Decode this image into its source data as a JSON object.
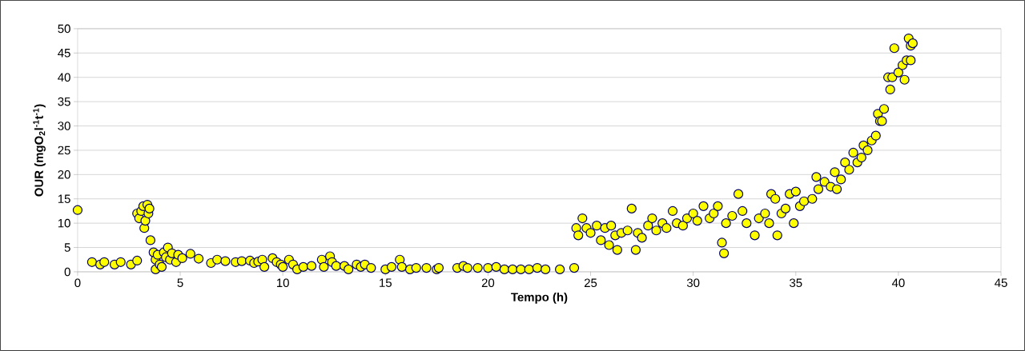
{
  "chart_data": {
    "type": "scatter",
    "xlabel": "Tempo (h)",
    "ylabel": "**OUR (mgO$_{2}$l$^{-1}$t$^{-1}$)**",
    "xlim": [
      0,
      45
    ],
    "xticks": [
      0,
      5,
      10,
      15,
      20,
      25,
      30,
      35,
      40,
      45
    ],
    "ylim": [
      0,
      50
    ],
    "yticks": [
      0,
      5,
      10,
      15,
      20,
      25,
      30,
      35,
      40,
      45,
      50
    ],
    "grid": "y",
    "series": [
      {
        "color": "#ffff00",
        "x": [
          0,
          0.7,
          1.1,
          1.3,
          1.8,
          2.1,
          2.6,
          2.9,
          2.9,
          3.0,
          3.1,
          3.2,
          3.25,
          3.3,
          3.4,
          3.45,
          3.5,
          3.55,
          3.7,
          3.8,
          3.8,
          3.9,
          4.0,
          4.1,
          4.2,
          4.3,
          4.4,
          4.5,
          4.6,
          4.8,
          4.9,
          5.1,
          5.5,
          5.9,
          6.5,
          6.8,
          7.2,
          7.7,
          8.0,
          8.4,
          8.6,
          8.8,
          9.0,
          9.1,
          9.5,
          9.7,
          9.9,
          10.0,
          10.3,
          10.5,
          10.7,
          11.0,
          11.4,
          11.9,
          12.0,
          12.3,
          12.4,
          12.6,
          13.0,
          13.2,
          13.6,
          13.8,
          14.0,
          14.3,
          15.0,
          15.3,
          15.7,
          15.8,
          16.2,
          16.5,
          17.0,
          17.5,
          17.6,
          18.5,
          18.8,
          19.0,
          19.5,
          20.0,
          20.4,
          20.8,
          21.2,
          21.6,
          22.0,
          22.4,
          22.8,
          23.5,
          24.2,
          24.3,
          24.4,
          24.6,
          24.8,
          25.0,
          25.3,
          25.5,
          25.7,
          25.9,
          26.0,
          26.2,
          26.3,
          26.5,
          26.8,
          27.0,
          27.2,
          27.3,
          27.5,
          27.8,
          28.0,
          28.2,
          28.5,
          28.7,
          29.0,
          29.2,
          29.5,
          29.7,
          30.0,
          30.2,
          30.5,
          30.8,
          31.0,
          31.2,
          31.4,
          31.5,
          31.6,
          31.9,
          32.2,
          32.4,
          32.6,
          33.0,
          33.2,
          33.5,
          33.7,
          33.8,
          34.0,
          34.1,
          34.3,
          34.5,
          34.7,
          34.9,
          35.0,
          35.2,
          35.4,
          35.8,
          36.0,
          36.1,
          36.4,
          36.7,
          36.9,
          37.0,
          37.2,
          37.4,
          37.6,
          37.8,
          38.0,
          38.2,
          38.3,
          38.5,
          38.7,
          38.9,
          39.0,
          39.1,
          39.2,
          39.3,
          39.5,
          39.6,
          39.7,
          39.8,
          40.0,
          40.2,
          40.3,
          40.4,
          40.5,
          40.6,
          40.6,
          40.7
        ],
        "values": [
          12.7,
          2,
          1.5,
          2,
          1.5,
          2,
          1.5,
          2.3,
          12,
          11,
          12.5,
          13.5,
          9,
          10.5,
          13.8,
          12,
          13,
          6.5,
          4,
          2.5,
          0.5,
          3.5,
          1.5,
          1,
          4,
          3,
          5,
          2.5,
          3.8,
          2,
          3.5,
          2.8,
          3.7,
          2.7,
          1.8,
          2.5,
          2.2,
          2,
          2.2,
          2.3,
          1.8,
          2.1,
          2.5,
          1,
          2.8,
          2,
          1.5,
          1,
          2.5,
          1.5,
          0.5,
          1,
          1.2,
          2.5,
          1,
          3.2,
          2,
          1.2,
          1.2,
          0.5,
          1.5,
          1,
          1.5,
          0.8,
          0.5,
          1,
          2.5,
          1,
          0.5,
          0.8,
          0.8,
          0.5,
          0.8,
          0.8,
          1.2,
          0.8,
          0.8,
          0.8,
          1,
          0.5,
          0.5,
          0.5,
          0.5,
          0.8,
          0.5,
          0.5,
          0.8,
          9,
          7.5,
          11,
          9,
          8,
          9.5,
          6.5,
          9,
          5.5,
          9.5,
          7.5,
          4.5,
          8,
          8.5,
          13,
          4.5,
          8,
          7,
          9.5,
          11,
          8.5,
          10,
          9,
          12.5,
          10,
          9.5,
          11,
          12,
          10.5,
          13.5,
          11,
          12,
          13.5,
          6,
          3.8,
          10,
          11.5,
          16,
          12.5,
          10,
          7.5,
          11,
          12,
          10,
          16,
          15,
          7.5,
          12,
          13,
          16,
          10,
          16.5,
          13.5,
          14.5,
          15,
          19.5,
          17,
          18.5,
          17.5,
          20.5,
          17,
          19,
          22.5,
          21,
          24.5,
          22.5,
          23.5,
          26,
          25,
          27,
          28,
          32.5,
          31,
          31,
          33.5,
          40,
          37.5,
          40,
          46,
          41,
          42.5,
          39.5,
          43.5,
          48,
          46.5,
          43.5,
          47
        ]
      }
    ]
  }
}
